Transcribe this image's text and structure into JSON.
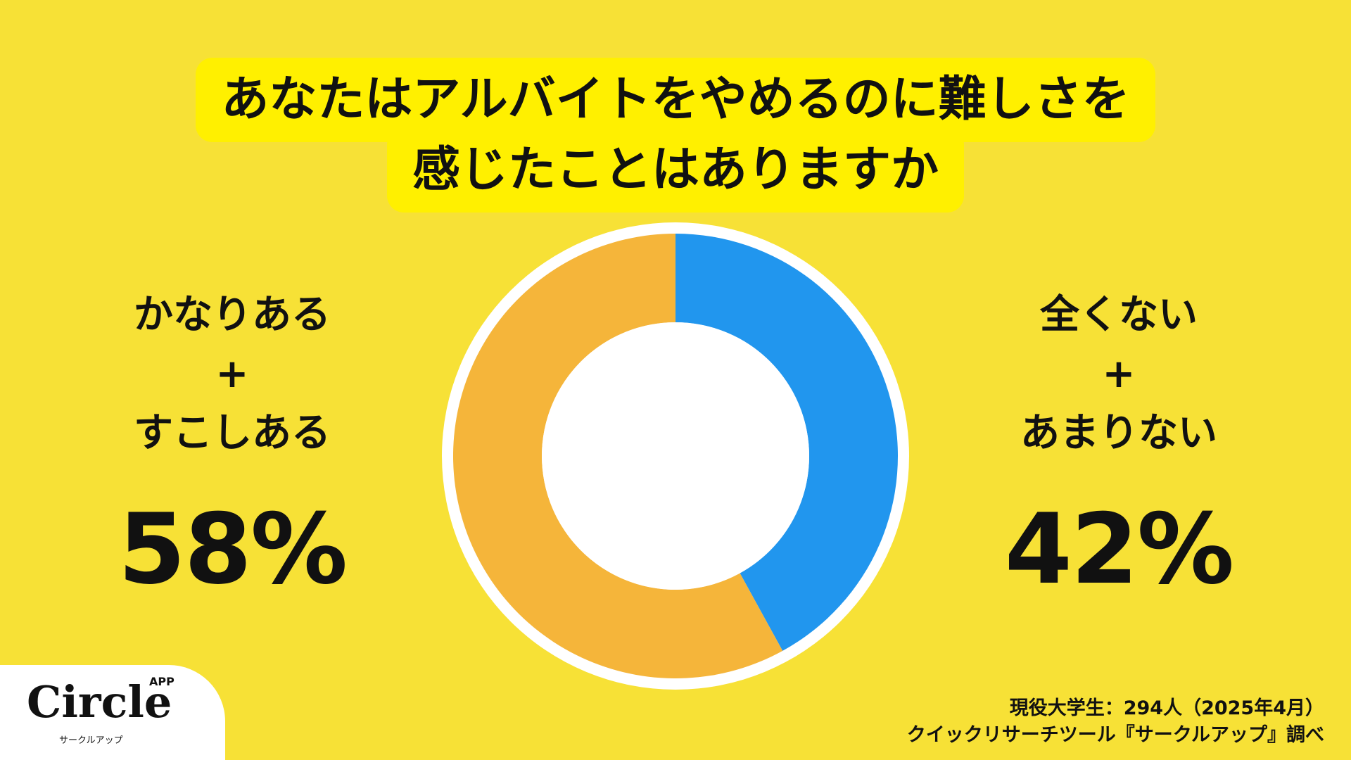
{
  "title_line1": "あなたはアルバイトをやめるのに難しさを",
  "title_line2": "感じたことはありますか",
  "chart_data": {
    "type": "pie",
    "donut": true,
    "slices": [
      {
        "label": "全くない＋あまりない",
        "value": 42,
        "color": "#2196EE"
      },
      {
        "label": "かなりある＋すこしある",
        "value": 58,
        "color": "#F5B53A"
      }
    ]
  },
  "left": {
    "line1": "かなりある",
    "plus": "+",
    "line2": "すこしある",
    "percent": "58%"
  },
  "right": {
    "line1": "全くない",
    "plus": "+",
    "line2": "あまりない",
    "percent": "42%"
  },
  "logo": {
    "name": "Circle",
    "app": "APP",
    "sub": "サークルアップ"
  },
  "source": {
    "line1": "現役大学生：294人（2025年4月）",
    "line2": "クイックリサーチツール『サークルアップ』調べ"
  }
}
